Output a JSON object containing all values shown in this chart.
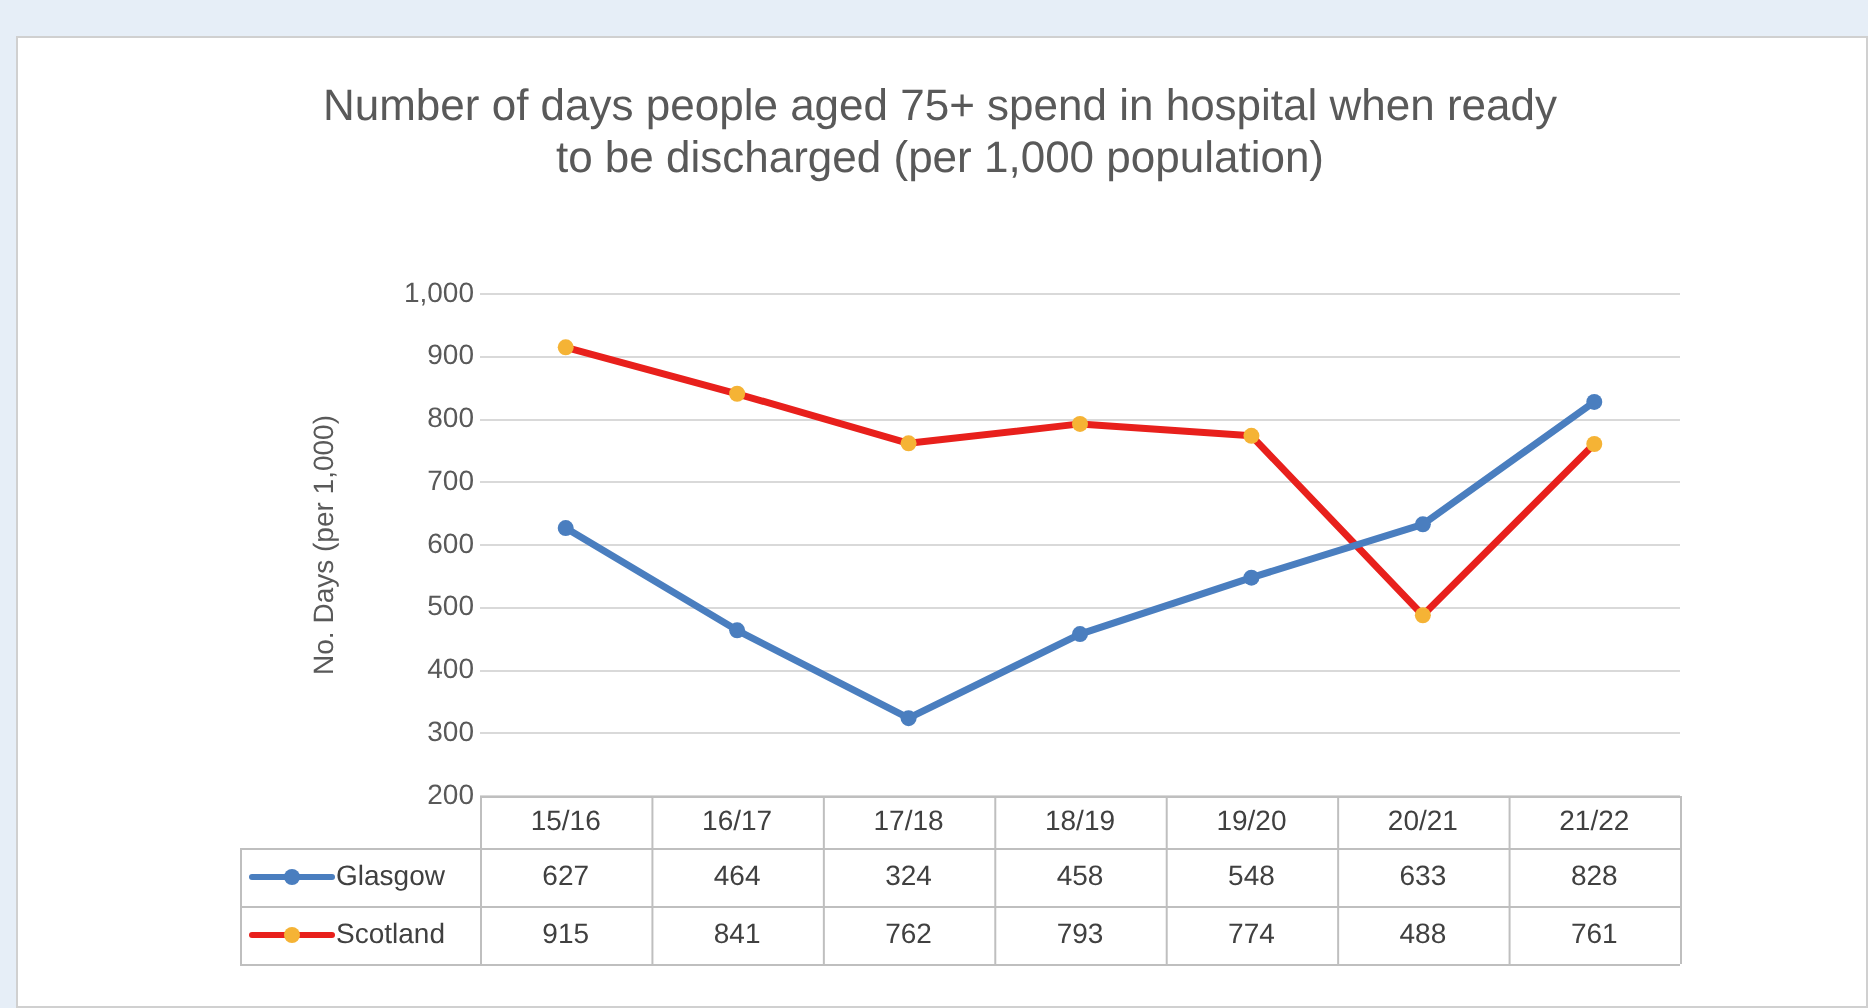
{
  "chart_data": {
    "type": "line",
    "title": "Number of days people aged 75+ spend in hospital when ready to be discharged (per 1,000 population)",
    "ylabel": "No. Days (per 1,000)",
    "categories": [
      "15/16",
      "16/17",
      "17/18",
      "18/19",
      "19/20",
      "20/21",
      "21/22"
    ],
    "series": [
      {
        "name": "Glasgow",
        "color": "#4a7ebf",
        "values": [
          627,
          464,
          324,
          458,
          548,
          633,
          828
        ]
      },
      {
        "name": "Scotland",
        "color": "#e8201c",
        "colors": [
          "#f5b335",
          "#f5b335",
          "#f5b335",
          "#f5b335",
          "#f5b335",
          "#f5b335",
          "#f5b335"
        ],
        "values": [
          915,
          841,
          762,
          793,
          774,
          488,
          761
        ]
      }
    ],
    "ylim": [
      200,
      1000
    ],
    "yticks": [
      200,
      300,
      400,
      500,
      600,
      700,
      800,
      900,
      {
        "value": 1000,
        "label": "1,000"
      }
    ],
    "grid": "y",
    "legend": "bottom",
    "marker": "circle",
    "line_style": "solid",
    "data_labels": true
  }
}
